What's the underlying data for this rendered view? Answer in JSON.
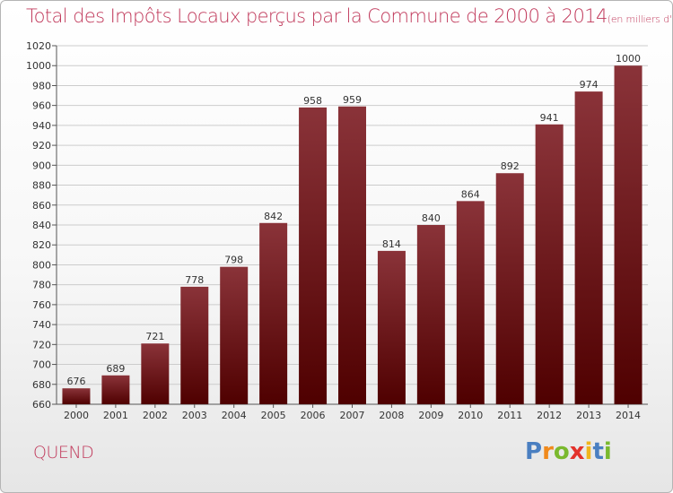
{
  "title": "Total des Impôts Locaux perçus par la Commune de 2000 à 2014",
  "unit_label": "(en milliers d'€)",
  "commune": "QUEND",
  "brand": {
    "letters": [
      "P",
      "r",
      "o",
      "x",
      "i",
      "t",
      "i"
    ],
    "colors": [
      "#4a7fc1",
      "#f08a1c",
      "#7ab92e",
      "#e3322b",
      "#f0b51c",
      "#4a7fc1",
      "#7ab92e"
    ]
  },
  "colors": {
    "bar_top": "#8a3339",
    "bar_bottom": "#4f0000",
    "axis_text": "#333333",
    "grid": "#cccccc"
  },
  "chart_data": {
    "type": "bar",
    "title": "Total des Impôts Locaux perçus par la Commune de 2000 à 2014",
    "xlabel": "",
    "ylabel": "en milliers d'€",
    "categories": [
      "2000",
      "2001",
      "2002",
      "2003",
      "2004",
      "2005",
      "2006",
      "2007",
      "2008",
      "2009",
      "2010",
      "2011",
      "2012",
      "2013",
      "2014"
    ],
    "values": [
      676,
      689,
      721,
      778,
      798,
      842,
      958,
      959,
      814,
      840,
      864,
      892,
      941,
      974,
      1000
    ],
    "value_labels": [
      "676",
      "689",
      "721",
      "778",
      "798",
      "842",
      "958",
      "959",
      "814",
      "840",
      "864",
      "892",
      "941",
      "974",
      "1000"
    ],
    "ylim": [
      660,
      1020
    ],
    "yticks": [
      660,
      680,
      700,
      720,
      740,
      760,
      780,
      800,
      820,
      840,
      860,
      880,
      900,
      920,
      940,
      960,
      980,
      1000,
      1020
    ],
    "grid": true
  }
}
